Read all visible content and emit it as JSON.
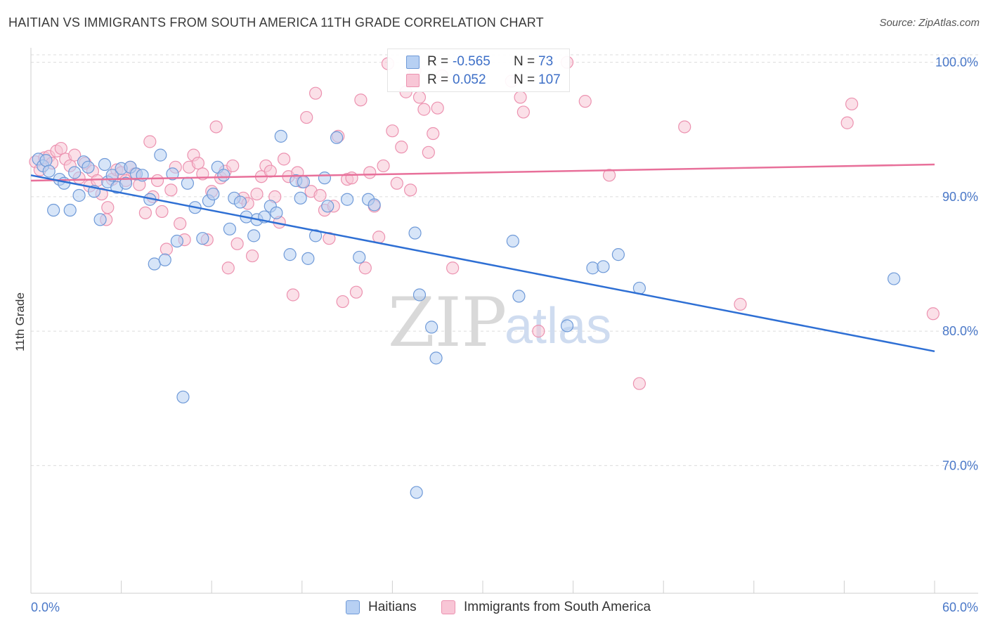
{
  "header": {
    "title": "HAITIAN VS IMMIGRANTS FROM SOUTH AMERICA 11TH GRADE CORRELATION CHART",
    "source": "Source: ZipAtlas.com"
  },
  "legend": {
    "rows": [
      {
        "r_label": "R =",
        "r_value": "-0.565",
        "n_label": "N =",
        "n_value": "73"
      },
      {
        "r_label": "R =",
        "r_value": "0.052",
        "n_label": "N =",
        "n_value": "107"
      }
    ]
  },
  "bottom_legend": {
    "series_a": "Haitians",
    "series_b": "Immigrants from South America"
  },
  "watermark": {
    "zip": "ZIP",
    "atlas": "atlas"
  },
  "colors": {
    "blue_fill": "#b7d0f3",
    "blue_stroke": "#6f9ad8",
    "blue_line": "#2e6fd4",
    "pink_fill": "#f8c6d6",
    "pink_stroke": "#ec92b0",
    "pink_line": "#e8709a",
    "tick_text": "#4a78c8",
    "grid": "#dcdcdc"
  },
  "chart_data": {
    "type": "scatter",
    "title": "HAITIAN VS IMMIGRANTS FROM SOUTH AMERICA 11TH GRADE CORRELATION CHART",
    "ylabel": "11th Grade",
    "xlabel": "",
    "xlim": [
      0,
      60
    ],
    "ylim": [
      60.5,
      101.5
    ],
    "x_tick_labels": [
      "0.0%",
      "60.0%"
    ],
    "y_ticks": [
      70,
      80,
      90,
      100
    ],
    "y_tick_labels": [
      "70.0%",
      "80.0%",
      "90.0%",
      "100.0%"
    ],
    "grid": true,
    "legend_position": "top-center",
    "series": [
      {
        "name": "Haitians",
        "color": "#b7d0f3",
        "trend": {
          "x": [
            0,
            60
          ],
          "y": [
            91.6,
            78.5
          ]
        },
        "points": [
          [
            0.5,
            92.8
          ],
          [
            0.8,
            92.3
          ],
          [
            1.0,
            92.7
          ],
          [
            1.2,
            91.9
          ],
          [
            1.5,
            89.0
          ],
          [
            1.9,
            91.3
          ],
          [
            2.2,
            91.0
          ],
          [
            2.6,
            89.0
          ],
          [
            2.9,
            91.8
          ],
          [
            3.2,
            90.1
          ],
          [
            3.5,
            92.6
          ],
          [
            3.8,
            92.2
          ],
          [
            4.2,
            90.4
          ],
          [
            4.6,
            88.3
          ],
          [
            4.9,
            92.4
          ],
          [
            5.1,
            91.1
          ],
          [
            5.4,
            91.6
          ],
          [
            5.7,
            90.7
          ],
          [
            6.0,
            92.1
          ],
          [
            6.3,
            91.0
          ],
          [
            6.6,
            92.2
          ],
          [
            7.0,
            91.7
          ],
          [
            7.4,
            91.6
          ],
          [
            7.9,
            89.8
          ],
          [
            8.2,
            85.0
          ],
          [
            8.6,
            93.1
          ],
          [
            8.9,
            85.3
          ],
          [
            9.4,
            91.7
          ],
          [
            9.7,
            86.7
          ],
          [
            10.1,
            75.1
          ],
          [
            10.4,
            91.0
          ],
          [
            10.9,
            89.2
          ],
          [
            11.4,
            86.9
          ],
          [
            11.8,
            89.7
          ],
          [
            12.1,
            90.2
          ],
          [
            12.4,
            92.2
          ],
          [
            12.8,
            91.6
          ],
          [
            13.2,
            87.6
          ],
          [
            13.5,
            89.9
          ],
          [
            13.9,
            89.6
          ],
          [
            14.3,
            88.5
          ],
          [
            14.8,
            87.1
          ],
          [
            15.0,
            88.3
          ],
          [
            15.5,
            88.5
          ],
          [
            15.9,
            89.3
          ],
          [
            16.3,
            88.8
          ],
          [
            16.6,
            94.5
          ],
          [
            17.2,
            85.7
          ],
          [
            17.6,
            91.2
          ],
          [
            17.9,
            89.9
          ],
          [
            18.1,
            91.1
          ],
          [
            18.4,
            85.4
          ],
          [
            18.9,
            87.1
          ],
          [
            19.5,
            91.4
          ],
          [
            19.7,
            89.3
          ],
          [
            20.3,
            94.4
          ],
          [
            21.0,
            89.8
          ],
          [
            21.8,
            85.5
          ],
          [
            22.4,
            89.8
          ],
          [
            22.8,
            89.4
          ],
          [
            25.5,
            87.3
          ],
          [
            25.6,
            68.0
          ],
          [
            25.8,
            82.7
          ],
          [
            26.6,
            80.3
          ],
          [
            26.9,
            78.0
          ],
          [
            32.0,
            86.7
          ],
          [
            32.4,
            82.6
          ],
          [
            35.6,
            80.4
          ],
          [
            37.3,
            84.7
          ],
          [
            38.0,
            84.8
          ],
          [
            39.0,
            85.7
          ],
          [
            40.4,
            83.2
          ],
          [
            57.3,
            83.9
          ]
        ]
      },
      {
        "name": "Immigrants from South America",
        "color": "#f8c6d6",
        "trend": {
          "x": [
            0,
            60
          ],
          "y": [
            91.2,
            92.4
          ]
        },
        "points": [
          [
            0.3,
            92.6
          ],
          [
            0.6,
            92.0
          ],
          [
            0.9,
            92.9
          ],
          [
            1.2,
            93.0
          ],
          [
            1.4,
            92.5
          ],
          [
            1.7,
            93.4
          ],
          [
            2.0,
            93.6
          ],
          [
            2.3,
            92.8
          ],
          [
            2.6,
            92.3
          ],
          [
            2.9,
            93.1
          ],
          [
            3.2,
            91.4
          ],
          [
            3.6,
            92.5
          ],
          [
            3.9,
            90.8
          ],
          [
            4.1,
            91.9
          ],
          [
            4.4,
            91.2
          ],
          [
            4.7,
            90.2
          ],
          [
            5.0,
            88.3
          ],
          [
            5.1,
            89.2
          ],
          [
            5.4,
            91.3
          ],
          [
            5.7,
            92.0
          ],
          [
            6.0,
            91.8
          ],
          [
            6.3,
            91.2
          ],
          [
            6.6,
            92.2
          ],
          [
            6.9,
            91.7
          ],
          [
            7.2,
            90.9
          ],
          [
            7.6,
            88.8
          ],
          [
            7.9,
            94.1
          ],
          [
            8.1,
            90.0
          ],
          [
            8.4,
            91.2
          ],
          [
            8.7,
            88.9
          ],
          [
            9.0,
            86.1
          ],
          [
            9.3,
            90.5
          ],
          [
            9.6,
            92.2
          ],
          [
            9.9,
            88.0
          ],
          [
            10.2,
            86.8
          ],
          [
            10.5,
            92.2
          ],
          [
            10.8,
            93.1
          ],
          [
            11.1,
            92.5
          ],
          [
            11.4,
            91.7
          ],
          [
            11.7,
            86.8
          ],
          [
            12.0,
            90.4
          ],
          [
            12.3,
            95.2
          ],
          [
            12.6,
            91.4
          ],
          [
            12.9,
            91.9
          ],
          [
            13.1,
            84.7
          ],
          [
            13.4,
            92.3
          ],
          [
            13.7,
            86.5
          ],
          [
            14.1,
            89.9
          ],
          [
            14.4,
            89.5
          ],
          [
            14.7,
            85.6
          ],
          [
            15.0,
            90.2
          ],
          [
            15.3,
            91.5
          ],
          [
            15.6,
            92.3
          ],
          [
            15.9,
            91.9
          ],
          [
            16.2,
            90.0
          ],
          [
            16.5,
            88.1
          ],
          [
            16.8,
            92.8
          ],
          [
            17.1,
            91.5
          ],
          [
            17.4,
            82.7
          ],
          [
            17.7,
            91.8
          ],
          [
            18.0,
            91.1
          ],
          [
            18.3,
            95.9
          ],
          [
            18.6,
            90.4
          ],
          [
            18.9,
            97.7
          ],
          [
            19.2,
            90.1
          ],
          [
            19.5,
            89.0
          ],
          [
            19.8,
            86.9
          ],
          [
            20.1,
            89.3
          ],
          [
            20.4,
            94.5
          ],
          [
            20.7,
            82.2
          ],
          [
            21.0,
            91.3
          ],
          [
            21.3,
            91.4
          ],
          [
            21.6,
            82.9
          ],
          [
            21.9,
            97.2
          ],
          [
            22.2,
            84.7
          ],
          [
            22.5,
            91.8
          ],
          [
            22.8,
            89.3
          ],
          [
            23.1,
            87.0
          ],
          [
            23.4,
            92.3
          ],
          [
            23.7,
            99.9
          ],
          [
            24.0,
            94.9
          ],
          [
            24.3,
            91.0
          ],
          [
            24.6,
            93.7
          ],
          [
            24.9,
            97.8
          ],
          [
            25.2,
            90.5
          ],
          [
            25.5,
            99.4
          ],
          [
            25.8,
            97.4
          ],
          [
            26.1,
            96.5
          ],
          [
            26.4,
            93.3
          ],
          [
            26.7,
            94.7
          ],
          [
            27.0,
            96.6
          ],
          [
            27.3,
            99.0
          ],
          [
            28.0,
            84.7
          ],
          [
            31.9,
            98.6
          ],
          [
            32.5,
            97.4
          ],
          [
            32.7,
            96.3
          ],
          [
            33.7,
            80.0
          ],
          [
            35.6,
            100.0
          ],
          [
            36.8,
            97.1
          ],
          [
            38.4,
            91.6
          ],
          [
            40.4,
            76.1
          ],
          [
            43.4,
            95.2
          ],
          [
            47.1,
            82.0
          ],
          [
            54.2,
            95.5
          ],
          [
            54.5,
            96.9
          ],
          [
            59.9,
            81.3
          ]
        ]
      }
    ]
  }
}
